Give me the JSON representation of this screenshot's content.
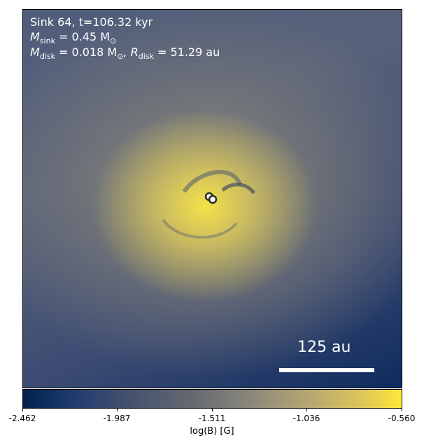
{
  "info": {
    "line1": "Sink 64, t=106.32 kyr",
    "m_sink_symbol": "M",
    "m_sink_sub": "sink",
    "m_sink_value": " = 0.45 M",
    "m_sink_unit_sub": "⊙",
    "m_disk_symbol": "M",
    "m_disk_sub": "disk",
    "m_disk_value": " = 0.018 M",
    "m_disk_unit_sub": "⊙",
    "r_disk_symbol": ", R",
    "r_disk_sub": "disk",
    "r_disk_value": " = 51.29 au"
  },
  "scalebar": {
    "label": "125 au"
  },
  "colorbar": {
    "ticks": [
      "-2.462",
      "-1.987",
      "-1.511",
      "-1.036",
      "-0.560"
    ],
    "title": "log(B) [G]"
  },
  "colors": {
    "low": "#00204c",
    "mid": "#7c7b78",
    "high": "#fde838",
    "text_overlay": "#ffffff"
  },
  "icons": [
    "sink-marker-icon"
  ]
}
